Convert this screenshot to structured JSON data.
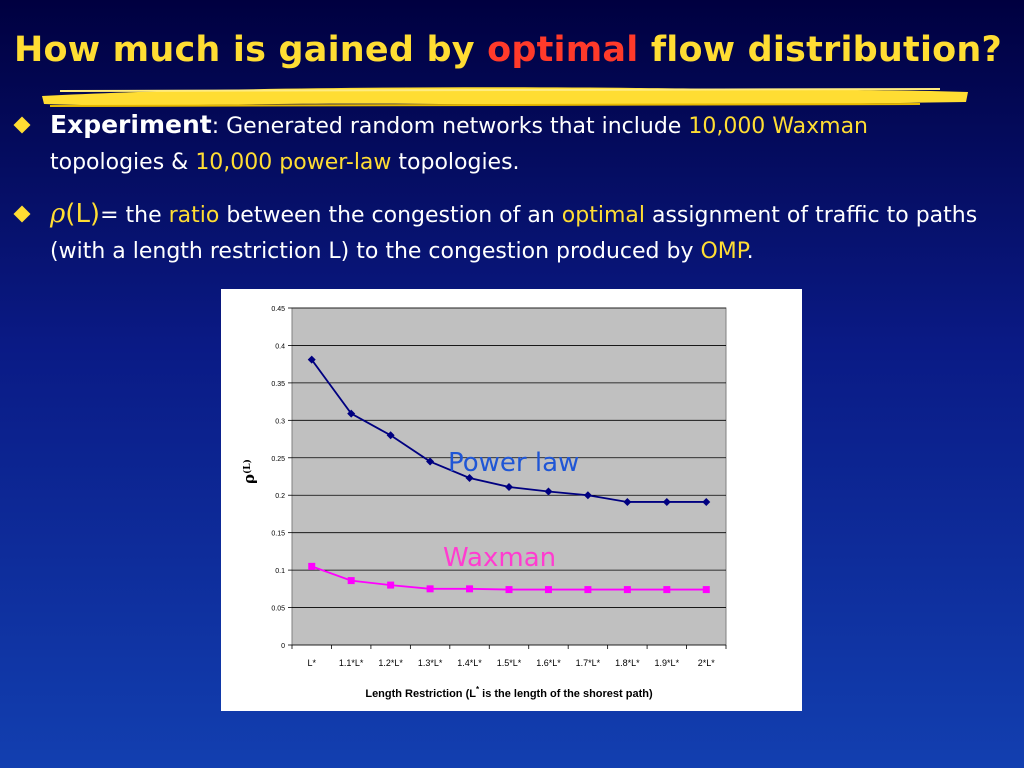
{
  "slide": {
    "title_part1": "How much is gained by ",
    "title_highlight": "optimal",
    "title_part2": " flow distribution?",
    "bullet1": {
      "term": "Experiment",
      "colon": ":",
      "text1": " Generated random networks that include  ",
      "num1": "10,000 Waxman",
      "text2": "topologies & ",
      "num2": "10,000 power-law",
      "text3": " topologies."
    },
    "bullet2": {
      "rho": "ρ",
      "paren_L": "(L)",
      "text1": "= the ",
      "ratio": "ratio",
      "text2": " between the congestion of an ",
      "optimal": "optimal",
      "text3": " assignment of traffic to paths (with a length restriction L) to the congestion produced by ",
      "omp": "OMP",
      "text4": "."
    }
  },
  "colors": {
    "title": "#ffdd33",
    "title_highlight": "#ff3a2a",
    "accent": "#ffdd33",
    "power_law": "#000080",
    "waxman": "#ff00ff",
    "plot_bg": "#c0c0c0"
  },
  "chart_data": {
    "type": "line",
    "categories": [
      "L*",
      "1.1*L*",
      "1.2*L*",
      "1.3*L*",
      "1.4*L*",
      "1.5*L*",
      "1.6*L*",
      "1.7*L*",
      "1.8*L*",
      "1.9*L*",
      "2*L*"
    ],
    "series": [
      {
        "name": "Power law",
        "values": [
          0.381,
          0.309,
          0.28,
          0.245,
          0.223,
          0.211,
          0.205,
          0.2,
          0.191,
          0.191,
          0.191
        ]
      },
      {
        "name": "Waxman",
        "values": [
          0.105,
          0.086,
          0.08,
          0.075,
          0.075,
          0.074,
          0.074,
          0.074,
          0.074,
          0.074,
          0.074
        ]
      }
    ],
    "yticks": [
      "0",
      "0.05",
      "0.1",
      "0.15",
      "0.2",
      "0.25",
      "0.3",
      "0.35",
      "0.4",
      "0.45"
    ],
    "ylim": [
      0,
      0.45
    ],
    "ylabel_main": "ρ",
    "ylabel_sub": "(L)",
    "xlabel_part1": "Length Restriction (L",
    "xlabel_sup": "*",
    "xlabel_part2": " is the length of the shorest path)",
    "grid": true,
    "legend": "inline labels"
  }
}
